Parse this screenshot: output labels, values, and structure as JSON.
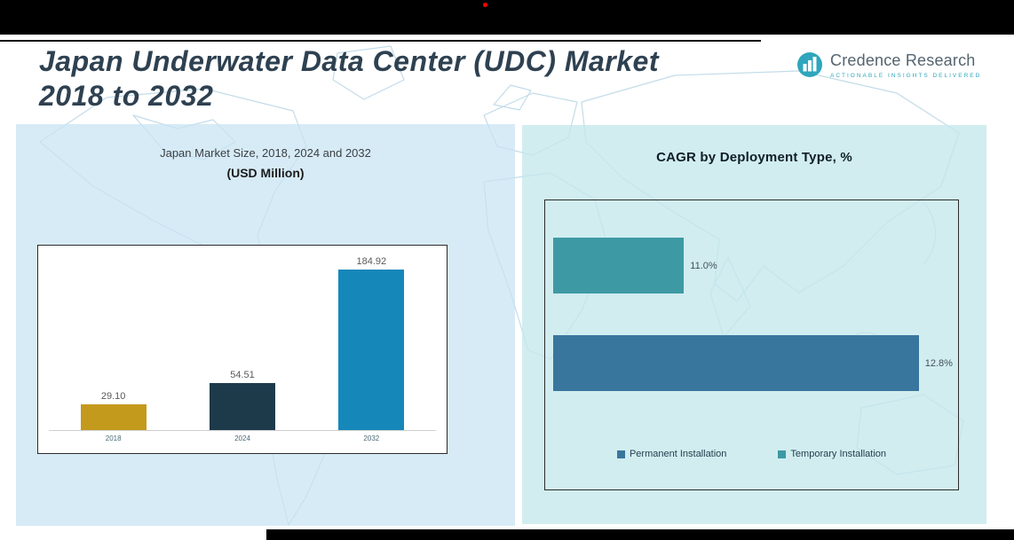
{
  "page": {
    "title_line1": "Japan Underwater Data Center (UDC) Market",
    "title_line2": "2018 to 2032"
  },
  "logo": {
    "name": "Credence Research",
    "tagline": "Actionable Insights Delivered",
    "icon": "bar-chart-circle-icon",
    "accent_color": "#2FA6BC"
  },
  "colors": {
    "top_bar": "#000000",
    "red_dot": "#FF0000",
    "title_text": "#2E4151",
    "panel_left_bg": "#D4E7F3",
    "panel_right_bg": "#D6ECEF",
    "map_line": "#C3DCE8",
    "chart_border": "#2B2B2B"
  },
  "chart_data": [
    {
      "type": "bar",
      "title": "Japan Market Size, 2018, 2024 and 2032",
      "subtitle": "(USD Million)",
      "categories": [
        "2018",
        "2024",
        "2032"
      ],
      "values": [
        29.1,
        54.51,
        184.92
      ],
      "value_labels": [
        "29.10",
        "54.51",
        "184.92"
      ],
      "bar_colors": [
        "#C49A1C",
        "#1D3A4B",
        "#1687B9"
      ],
      "xlabel": "",
      "ylabel": "",
      "ylim": [
        0,
        200
      ],
      "grid": false,
      "legend_position": "none"
    },
    {
      "type": "bar",
      "orientation": "horizontal",
      "title": "CAGR by Deployment Type, %",
      "categories": [
        "Temporary Installation",
        "Permanent Installation"
      ],
      "values": [
        11.0,
        12.8
      ],
      "value_labels": [
        "11.0%",
        "12.8%"
      ],
      "bar_colors": [
        "#3D9AA4",
        "#38769E"
      ],
      "axis_min": 10,
      "axis_max": 13.1,
      "xlim": [
        10,
        13.1
      ],
      "xlabel": "",
      "ylabel": "",
      "grid": false,
      "legend_position": "bottom",
      "legend": [
        {
          "label": "Permanent Installation",
          "color": "#38769E"
        },
        {
          "label": "Temporary Installation",
          "color": "#3D9AA4"
        }
      ]
    }
  ]
}
